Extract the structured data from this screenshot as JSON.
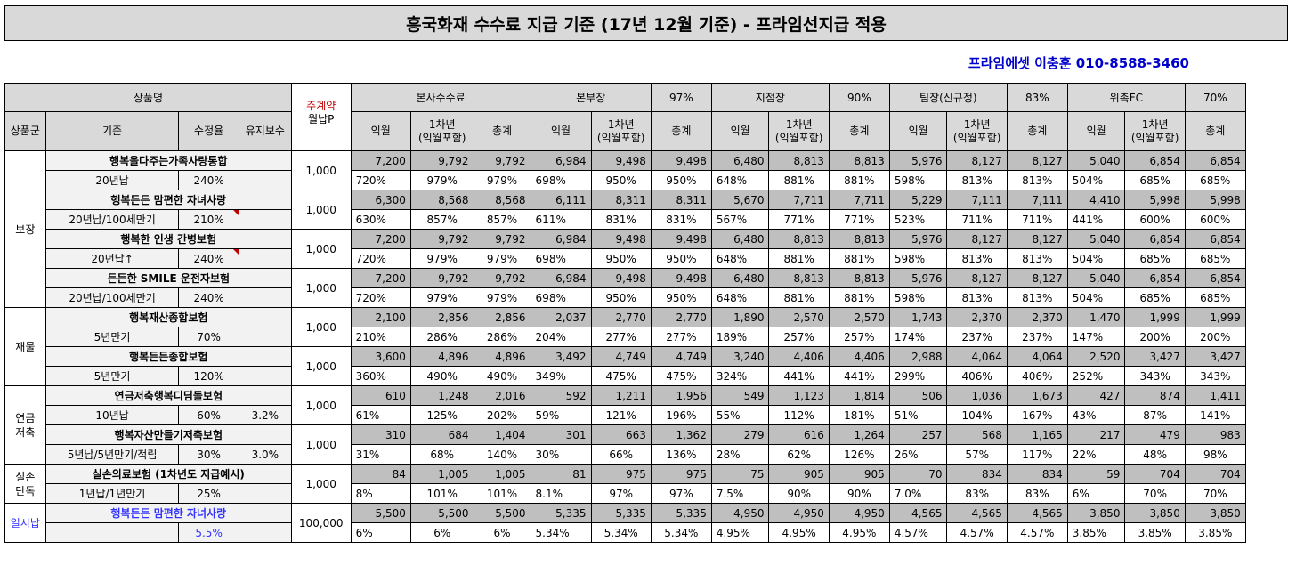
{
  "title": "흥국화재 수수료 지급 기준 (17년 12월 기준) - 프라임선지급 적용",
  "contact": "프라임에셋 이충훈 010-8588-3460",
  "header": {
    "product_name": "상품명",
    "monthly_premium_line1": "주계약",
    "monthly_premium_line2": "월납P",
    "hq_commission": "본사수수료",
    "branch_director": "본부장",
    "branch_director_rate": "97%",
    "branch_manager": "지점장",
    "branch_manager_rate": "90%",
    "team_leader": "팀장(신규정)",
    "team_leader_rate": "83%",
    "fc": "위촉FC",
    "fc_rate": "70%",
    "product_group": "상품군",
    "basis": "기준",
    "correction_rate": "수정율",
    "maintenance_fee": "유지보수",
    "month_after": "익월",
    "year1_line1": "1차년",
    "year1_line2": "(익월포함)",
    "total": "총계"
  },
  "groups": [
    {
      "name": "보장",
      "products": [
        {
          "name": "행복을다주는가족사랑통합",
          "basis": "20년납",
          "rate": "240%",
          "maint": "",
          "flag": false,
          "premium": "1,000",
          "amounts": [
            "7,200",
            "9,792",
            "9,792",
            "6,984",
            "9,498",
            "9,498",
            "6,480",
            "8,813",
            "8,813",
            "5,976",
            "8,127",
            "8,127",
            "5,040",
            "6,854",
            "6,854"
          ],
          "percents": [
            "720%",
            "979%",
            "979%",
            "698%",
            "950%",
            "950%",
            "648%",
            "881%",
            "881%",
            "598%",
            "813%",
            "813%",
            "504%",
            "685%",
            "685%"
          ]
        },
        {
          "name": "행복든든 맘편한 자녀사랑",
          "basis": "20년납/100세만기",
          "rate": "210%",
          "maint": "",
          "flag": true,
          "premium": "1,000",
          "amounts": [
            "6,300",
            "8,568",
            "8,568",
            "6,111",
            "8,311",
            "8,311",
            "5,670",
            "7,711",
            "7,711",
            "5,229",
            "7,111",
            "7,111",
            "4,410",
            "5,998",
            "5,998"
          ],
          "percents": [
            "630%",
            "857%",
            "857%",
            "611%",
            "831%",
            "831%",
            "567%",
            "771%",
            "771%",
            "523%",
            "711%",
            "711%",
            "441%",
            "600%",
            "600%"
          ]
        },
        {
          "name": "행복한 인생 간병보험",
          "basis": "20년납↑",
          "rate": "240%",
          "maint": "",
          "flag": true,
          "premium": "1,000",
          "amounts": [
            "7,200",
            "9,792",
            "9,792",
            "6,984",
            "9,498",
            "9,498",
            "6,480",
            "8,813",
            "8,813",
            "5,976",
            "8,127",
            "8,127",
            "5,040",
            "6,854",
            "6,854"
          ],
          "percents": [
            "720%",
            "979%",
            "979%",
            "698%",
            "950%",
            "950%",
            "648%",
            "881%",
            "881%",
            "598%",
            "813%",
            "813%",
            "504%",
            "685%",
            "685%"
          ]
        },
        {
          "name": "든든한 SMILE 운전자보험",
          "basis": "20년납/100세만기",
          "rate": "240%",
          "maint": "",
          "flag": false,
          "premium": "1,000",
          "amounts": [
            "7,200",
            "9,792",
            "9,792",
            "6,984",
            "9,498",
            "9,498",
            "6,480",
            "8,813",
            "8,813",
            "5,976",
            "8,127",
            "8,127",
            "5,040",
            "6,854",
            "6,854"
          ],
          "percents": [
            "720%",
            "979%",
            "979%",
            "698%",
            "950%",
            "950%",
            "648%",
            "881%",
            "881%",
            "598%",
            "813%",
            "813%",
            "504%",
            "685%",
            "685%"
          ]
        }
      ]
    },
    {
      "name": "재물",
      "products": [
        {
          "name": "행복재산종합보험",
          "basis": "5년만기",
          "rate": "70%",
          "maint": "",
          "flag": false,
          "premium": "1,000",
          "amounts": [
            "2,100",
            "2,856",
            "2,856",
            "2,037",
            "2,770",
            "2,770",
            "1,890",
            "2,570",
            "2,570",
            "1,743",
            "2,370",
            "2,370",
            "1,470",
            "1,999",
            "1,999"
          ],
          "percents": [
            "210%",
            "286%",
            "286%",
            "204%",
            "277%",
            "277%",
            "189%",
            "257%",
            "257%",
            "174%",
            "237%",
            "237%",
            "147%",
            "200%",
            "200%"
          ]
        },
        {
          "name": "행복든든종합보험",
          "basis": "5년만기",
          "rate": "120%",
          "maint": "",
          "flag": false,
          "premium": "1,000",
          "amounts": [
            "3,600",
            "4,896",
            "4,896",
            "3,492",
            "4,749",
            "4,749",
            "3,240",
            "4,406",
            "4,406",
            "2,988",
            "4,064",
            "4,064",
            "2,520",
            "3,427",
            "3,427"
          ],
          "percents": [
            "360%",
            "490%",
            "490%",
            "349%",
            "475%",
            "475%",
            "324%",
            "441%",
            "441%",
            "299%",
            "406%",
            "406%",
            "252%",
            "343%",
            "343%"
          ]
        }
      ]
    },
    {
      "name": "연금\n저축",
      "products": [
        {
          "name": "연금저축행복디딤돌보험",
          "basis": "10년납",
          "rate": "60%",
          "maint": "3.2%",
          "flag": false,
          "premium": "1,000",
          "amounts": [
            "610",
            "1,248",
            "2,016",
            "592",
            "1,211",
            "1,956",
            "549",
            "1,123",
            "1,814",
            "506",
            "1,036",
            "1,673",
            "427",
            "874",
            "1,411"
          ],
          "percents": [
            "61%",
            "125%",
            "202%",
            "59%",
            "121%",
            "196%",
            "55%",
            "112%",
            "181%",
            "51%",
            "104%",
            "167%",
            "43%",
            "87%",
            "141%"
          ]
        },
        {
          "name": "행복자산만들기저축보험",
          "basis": "5년납/5년만기/적립",
          "rate": "30%",
          "maint": "3.0%",
          "flag": false,
          "premium": "1,000",
          "amounts": [
            "310",
            "684",
            "1,404",
            "301",
            "663",
            "1,362",
            "279",
            "616",
            "1,264",
            "257",
            "568",
            "1,165",
            "217",
            "479",
            "983"
          ],
          "percents": [
            "31%",
            "68%",
            "140%",
            "30%",
            "66%",
            "136%",
            "28%",
            "62%",
            "126%",
            "26%",
            "57%",
            "117%",
            "22%",
            "48%",
            "98%"
          ]
        }
      ]
    },
    {
      "name": "실손\n단독",
      "products": [
        {
          "name": "실손의료보험 (1차년도 지급예시)",
          "basis": "1년납/1년만기",
          "rate": "25%",
          "maint": "",
          "flag": false,
          "premium": "1,000",
          "amounts": [
            "84",
            "1,005",
            "1,005",
            "81",
            "975",
            "975",
            "75",
            "905",
            "905",
            "70",
            "834",
            "834",
            "59",
            "704",
            "704"
          ],
          "percents": [
            "8%",
            "101%",
            "101%",
            "8.1%",
            "97%",
            "97%",
            "7.5%",
            "90%",
            "90%",
            "7.0%",
            "83%",
            "83%",
            "6%",
            "70%",
            "70%"
          ]
        }
      ]
    },
    {
      "name": "일시납",
      "blue": true,
      "products": [
        {
          "name": "행복든든 맘편한 자녀사랑",
          "basis": "",
          "rate": "5.5%",
          "maint": "",
          "flag": false,
          "premium": "100,000",
          "amounts": [
            "5,500",
            "5,500",
            "5,500",
            "5,335",
            "5,335",
            "5,335",
            "4,950",
            "4,950",
            "4,950",
            "4,565",
            "4,565",
            "4,565",
            "3,850",
            "3,850",
            "3,850"
          ],
          "percents": [
            "6%",
            "6%",
            "6%",
            "5.34%",
            "5.34%",
            "5.34%",
            "4.95%",
            "4.95%",
            "4.95%",
            "4.57%",
            "4.57%",
            "4.57%",
            "3.85%",
            "3.85%",
            "3.85%"
          ]
        }
      ]
    }
  ]
}
